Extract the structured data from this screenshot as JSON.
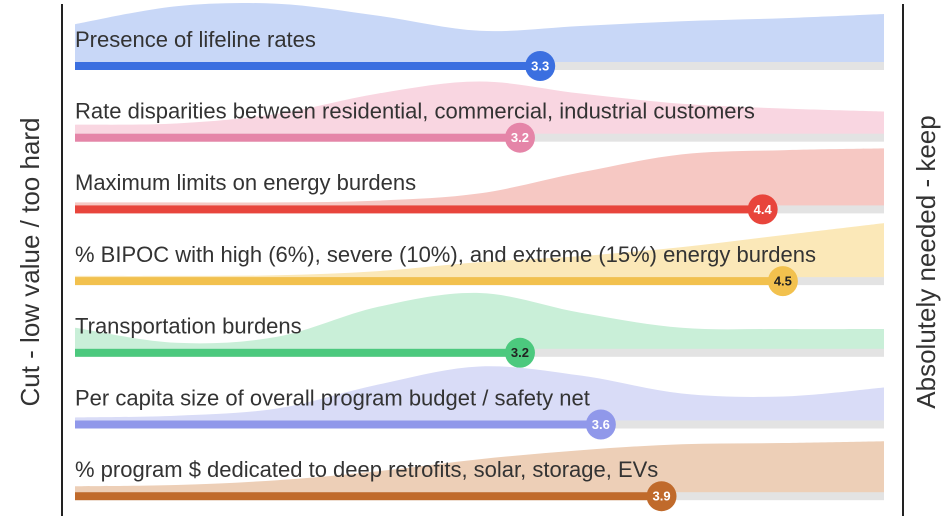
{
  "chart_data": {
    "type": "score-bars",
    "y_axis_label": "Cut - low value / too hard",
    "y2_axis_label": "Absolutely needed - keep",
    "xlim": [
      1,
      5
    ],
    "distribution_x": [
      1,
      1.5,
      2,
      2.5,
      3,
      3.5,
      4,
      4.5,
      5
    ],
    "items": [
      {
        "name": "Presence of lifeline rates",
        "value": 3.3,
        "color": "#3b6fe0",
        "area_color": "#c8d7f7",
        "label_color": "#ffffff",
        "distribution": [
          0.63,
          0.93,
          0.97,
          0.77,
          0.52,
          0.6,
          0.68,
          0.73,
          0.8
        ]
      },
      {
        "name": "Rate disparities between residential, commercial, industrial customers",
        "value": 3.2,
        "color": "#e585a8",
        "area_color": "#f9d6e1",
        "label_color": "#ffffff",
        "distribution": [
          0.15,
          0.17,
          0.33,
          0.67,
          0.87,
          0.67,
          0.5,
          0.42,
          0.37
        ]
      },
      {
        "name": "Maximum limits on energy burdens",
        "value": 4.4,
        "color": "#e8453c",
        "area_color": "#f6c8c3",
        "label_color": "#ffffff",
        "distribution": [
          0.05,
          0.05,
          0.05,
          0.08,
          0.2,
          0.55,
          0.85,
          0.92,
          0.95
        ]
      },
      {
        "name": "% BIPOC with high (6%), severe (10%), and extreme (15%) energy burdens",
        "value": 4.5,
        "color": "#f2c14e",
        "area_color": "#fbe8b8",
        "label_color": "#222222",
        "distribution": [
          0.02,
          0.02,
          0.03,
          0.1,
          0.25,
          0.35,
          0.5,
          0.7,
          0.9
        ]
      },
      {
        "name": "Transportation burdens",
        "value": 3.2,
        "color": "#4cc97e",
        "area_color": "#c9efd8",
        "label_color": "#222222",
        "distribution": [
          0.35,
          0.1,
          0.2,
          0.7,
          0.93,
          0.6,
          0.35,
          0.33,
          0.33
        ]
      },
      {
        "name": "Per capita size of overall program budget / safety net",
        "value": 3.6,
        "color": "#9098ea",
        "area_color": "#d9dcf7",
        "label_color": "#ffffff",
        "distribution": [
          0.05,
          0.08,
          0.2,
          0.6,
          0.9,
          0.75,
          0.45,
          0.4,
          0.55
        ]
      },
      {
        "name": "% program $ dedicated to deep retrofits, solar, storage, EVs",
        "value": 3.9,
        "color": "#c06a2b",
        "area_color": "#edcfb7",
        "label_color": "#ffffff",
        "distribution": [
          0.1,
          0.12,
          0.2,
          0.35,
          0.55,
          0.7,
          0.8,
          0.82,
          0.85
        ]
      }
    ]
  }
}
